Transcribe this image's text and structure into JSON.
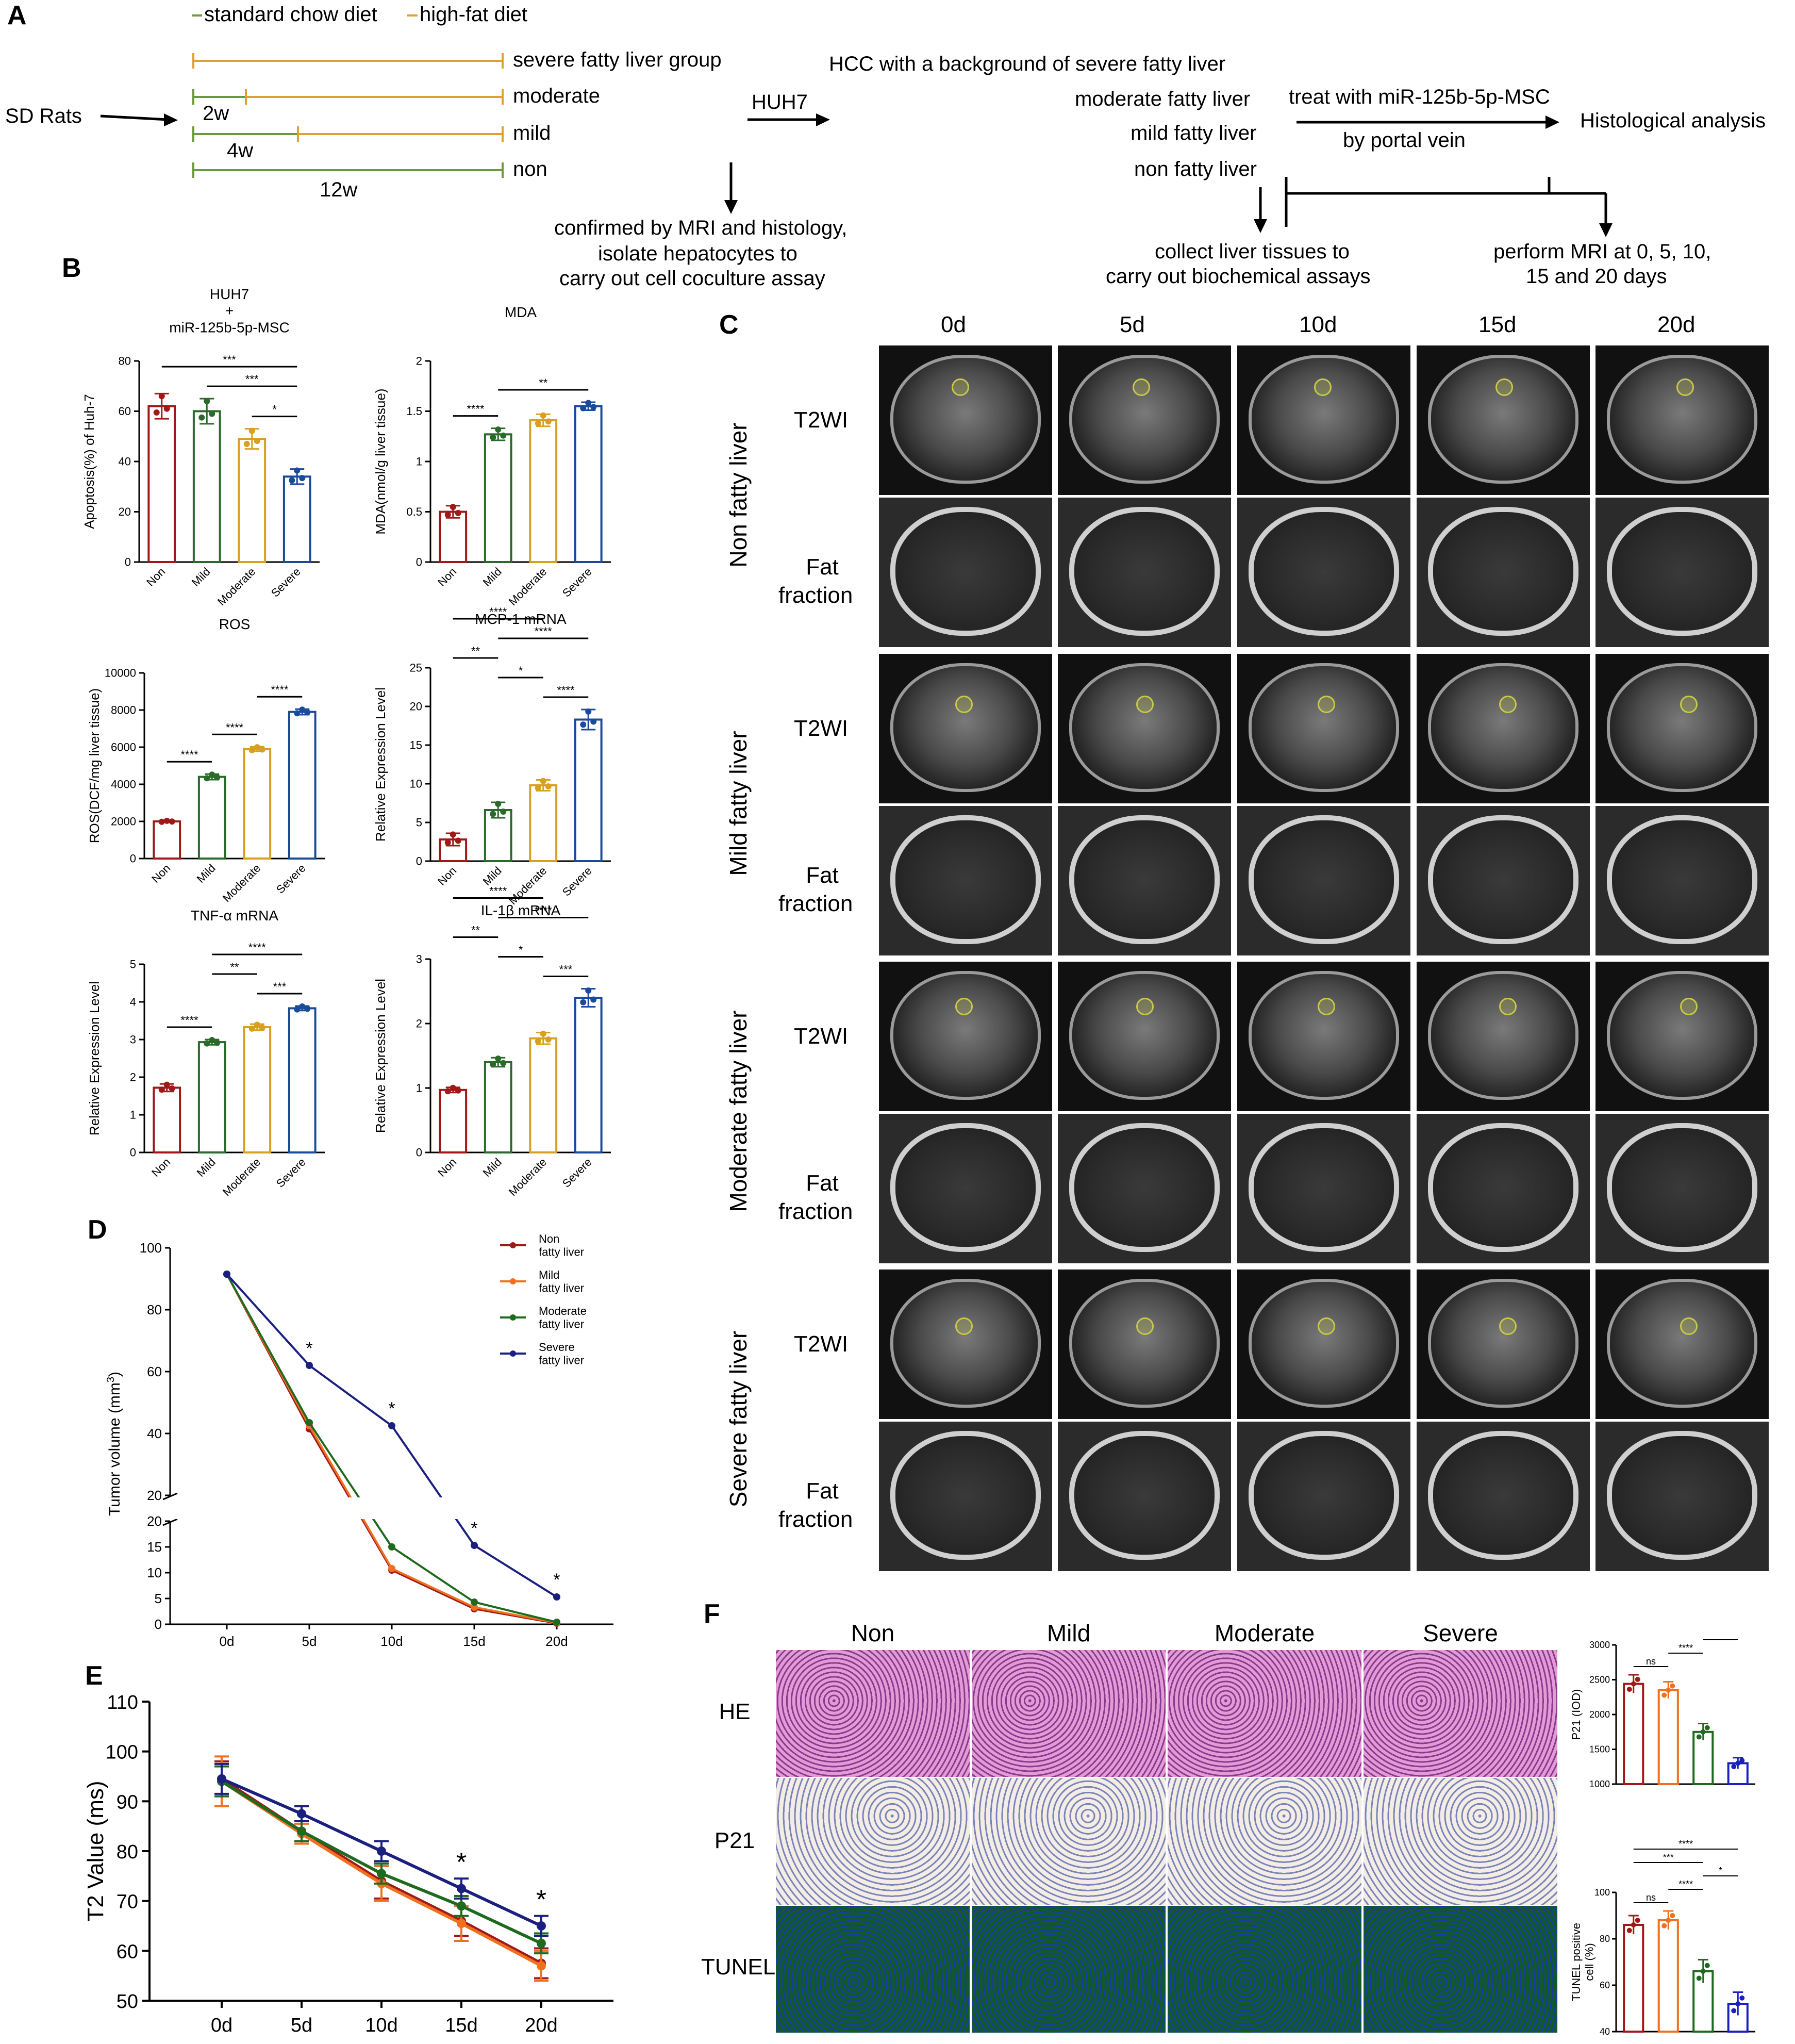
{
  "panel_labels": {
    "A": "A",
    "B": "B",
    "C": "C",
    "D": "D",
    "E": "E",
    "F": "F"
  },
  "panelA": {
    "legend_chow": "standard chow diet",
    "legend_hfd": "high-fat diet",
    "sd_rats": "SD Rats",
    "groups": [
      "severe fatty liver group",
      "moderate",
      "mild",
      "non"
    ],
    "durations": [
      "2w",
      "4w",
      "12w"
    ],
    "huh7": "HUH7",
    "hcc_bg": "HCC with a background of severe fatty liver",
    "confirm": [
      "confirmed by MRI and histology,",
      "isolate hepatocytes to",
      "carry out cell coculture assay"
    ],
    "right_groups": [
      "moderate fatty liver",
      "mild fatty liver",
      "non fatty liver"
    ],
    "treat": "treat with miR-125b-5p-MSC",
    "portal": "by portal vein",
    "histo": "Histological analysis",
    "collect": [
      "collect liver tissues to",
      "carry out biochemical assays"
    ],
    "mri": [
      "perform MRI at 0, 5, 10,",
      "15 and 20 days"
    ],
    "colors": {
      "chow": "#6a9a3a",
      "hfd": "#e0a030"
    }
  },
  "chart_data": [
    {
      "id": "B1",
      "type": "bar",
      "title": "HUH7\n+\nmiR-125b-5p-MSC",
      "ylabel": "Apoptosis(%) of Huh-7",
      "categories": [
        "Non",
        "Mild",
        "Moderate",
        "Severe"
      ],
      "values": [
        62,
        60,
        49,
        34
      ],
      "errors": [
        5,
        5,
        4,
        3
      ],
      "ylim": [
        0,
        80
      ],
      "ticks": [
        0,
        20,
        40,
        60,
        80
      ],
      "sig": [
        {
          "a": 1,
          "b": 3,
          "label": "***"
        },
        {
          "a": 0,
          "b": 3,
          "label": "***"
        },
        {
          "a": 2,
          "b": 3,
          "label": "*"
        }
      ]
    },
    {
      "id": "B2",
      "type": "bar",
      "title": "MDA",
      "ylabel": "MDA(nmol/g liver tissue)",
      "categories": [
        "Non",
        "Mild",
        "Moderate",
        "Severe"
      ],
      "values": [
        0.5,
        1.27,
        1.41,
        1.55
      ],
      "errors": [
        0.06,
        0.06,
        0.06,
        0.04
      ],
      "ylim": [
        0,
        2.0
      ],
      "ticks": [
        0.0,
        0.5,
        1.0,
        1.5,
        2.0
      ],
      "sig": [
        {
          "a": 0,
          "b": 1,
          "label": "****"
        },
        {
          "a": 1,
          "b": 3,
          "label": "**"
        }
      ]
    },
    {
      "id": "B3",
      "type": "bar",
      "title": "ROS",
      "ylabel": "ROS(DCF/mg liver tissue)",
      "categories": [
        "Non",
        "Mild",
        "Moderate",
        "Severe"
      ],
      "values": [
        2000,
        4400,
        5900,
        7900
      ],
      "errors": [
        40,
        150,
        120,
        150
      ],
      "ylim": [
        0,
        10000
      ],
      "ticks": [
        0,
        2000,
        4000,
        6000,
        8000,
        10000
      ],
      "sig": [
        {
          "a": 0,
          "b": 1,
          "label": "****"
        },
        {
          "a": 1,
          "b": 2,
          "label": "****"
        },
        {
          "a": 2,
          "b": 3,
          "label": "****"
        }
      ]
    },
    {
      "id": "B4",
      "type": "bar",
      "title": "MCP-1 mRNA",
      "ylabel": "Relative Expression Level",
      "categories": [
        "Non",
        "Mild",
        "Moderate",
        "Severe"
      ],
      "values": [
        2.8,
        6.6,
        9.8,
        18.3
      ],
      "errors": [
        0.8,
        1.0,
        0.7,
        1.3
      ],
      "ylim": [
        0,
        25
      ],
      "ticks": [
        0,
        5,
        10,
        15,
        20,
        25
      ],
      "sig": [
        {
          "a": 1,
          "b": 3,
          "label": "****"
        },
        {
          "a": 2,
          "b": 3,
          "label": "****"
        },
        {
          "a": 0,
          "b": 2,
          "label": "****"
        },
        {
          "a": 1,
          "b": 2,
          "label": "*"
        },
        {
          "a": 0,
          "b": 1,
          "label": "**"
        }
      ]
    },
    {
      "id": "B5",
      "type": "bar",
      "title": "TNF-α mRNA",
      "ylabel": "Relative Expression Level",
      "categories": [
        "Non",
        "Mild",
        "Moderate",
        "Severe"
      ],
      "values": [
        1.72,
        2.93,
        3.33,
        3.83
      ],
      "errors": [
        0.1,
        0.07,
        0.08,
        0.06
      ],
      "ylim": [
        0,
        5
      ],
      "ticks": [
        0,
        1,
        2,
        3,
        4,
        5
      ],
      "sig": [
        {
          "a": 1,
          "b": 3,
          "label": "****"
        },
        {
          "a": 2,
          "b": 3,
          "label": "***"
        },
        {
          "a": 0,
          "b": 1,
          "label": "****"
        },
        {
          "a": 1,
          "b": 2,
          "label": "**"
        }
      ]
    },
    {
      "id": "B6",
      "type": "bar",
      "title": "IL-1β mRNA",
      "ylabel": "Relative Expression Level",
      "categories": [
        "Non",
        "Mild",
        "Moderate",
        "Severe"
      ],
      "values": [
        0.97,
        1.4,
        1.77,
        2.4
      ],
      "errors": [
        0.04,
        0.07,
        0.09,
        0.14
      ],
      "ylim": [
        0,
        3
      ],
      "ticks": [
        0,
        1,
        2,
        3
      ],
      "sig": [
        {
          "a": 1,
          "b": 3,
          "label": "****"
        },
        {
          "a": 2,
          "b": 3,
          "label": "***"
        },
        {
          "a": 0,
          "b": 2,
          "label": "****"
        },
        {
          "a": 1,
          "b": 2,
          "label": "*"
        },
        {
          "a": 0,
          "b": 1,
          "label": "**"
        }
      ]
    },
    {
      "id": "D",
      "type": "line",
      "ylabel": "Tumor volume (mm",
      "ylabel_sup": "3",
      "ylabel_tail": ")",
      "x": [
        "0d",
        "5d",
        "10d",
        "15d",
        "20d"
      ],
      "series": [
        {
          "name": "Non\nfatty liver",
          "color": "#a01818",
          "values": [
            91.5,
            41.5,
            10.5,
            3.0,
            0.2
          ]
        },
        {
          "name": "Mild\nfatty liver",
          "color": "#f07020",
          "values": [
            91.5,
            42.5,
            10.8,
            3.3,
            0.3
          ]
        },
        {
          "name": "Moderate\nfatty liver",
          "color": "#1e6a1e",
          "values": [
            91.5,
            43.5,
            15.0,
            4.3,
            0.4
          ]
        },
        {
          "name": "Severe\nfatty liver",
          "color": "#1a1f80",
          "values": [
            91.5,
            62.0,
            42.5,
            15.3,
            5.3
          ]
        }
      ],
      "sig_x": [
        1,
        2,
        3,
        4
      ],
      "sig_label": "*",
      "upper_ticks": [
        20,
        40,
        60,
        80,
        100
      ],
      "lower_ticks": [
        0,
        5,
        10,
        15,
        20
      ]
    },
    {
      "id": "E",
      "type": "line",
      "ylabel": "T2 Value (ms)",
      "x": [
        "0d",
        "5d",
        "10d",
        "15d",
        "20d"
      ],
      "ylim": [
        50,
        110
      ],
      "ticks": [
        50,
        60,
        70,
        80,
        90,
        100,
        110
      ],
      "series": [
        {
          "name": "Non",
          "color": "#a01818",
          "values": [
            94.5,
            84,
            74,
            66,
            57.5
          ],
          "err": [
            3.5,
            2,
            3.5,
            3,
            3
          ]
        },
        {
          "name": "Mild",
          "color": "#f07020",
          "values": [
            94,
            83.5,
            73.5,
            65.5,
            57
          ],
          "err": [
            5,
            2,
            3.5,
            3.5,
            3
          ]
        },
        {
          "name": "Moderate",
          "color": "#1e6a1e",
          "values": [
            94,
            84,
            75.5,
            69,
            61.5
          ],
          "err": [
            3,
            2,
            2,
            2,
            2
          ]
        },
        {
          "name": "Severe",
          "color": "#1a1f80",
          "values": [
            94.5,
            87.5,
            80,
            72.5,
            65
          ],
          "err": [
            3,
            1.5,
            2,
            2,
            2
          ]
        }
      ],
      "sig_x": [
        3,
        4
      ],
      "sig_label": "*"
    },
    {
      "id": "F1",
      "type": "bar",
      "ylabel": "P21 (IOD)",
      "categories": [
        "Non",
        "Mild",
        "Moderate",
        "Severe"
      ],
      "values": [
        2440,
        2350,
        1750,
        1300
      ],
      "errors": [
        130,
        120,
        120,
        80
      ],
      "ylim": [
        1000,
        3000
      ],
      "ticks": [
        1000,
        1500,
        2000,
        2500,
        3000
      ],
      "colors": [
        "#a01818",
        "#f07020",
        "#1e6a1e",
        "#1a1fbf"
      ],
      "sig": [
        {
          "a": 0,
          "b": 2,
          "label": "****"
        },
        {
          "a": 0,
          "b": 1,
          "label": "ns"
        },
        {
          "a": 1,
          "b": 2,
          "label": "****"
        },
        {
          "a": 2,
          "b": 3,
          "label": "***"
        }
      ]
    },
    {
      "id": "F2",
      "type": "bar",
      "ylabel": "TUNEL positive\ncell (%)",
      "categories": [
        "Non",
        "Mild",
        "Moderate",
        "Severe"
      ],
      "values": [
        86,
        88,
        66,
        52
      ],
      "errors": [
        4,
        4,
        5,
        5
      ],
      "ylim": [
        40,
        100
      ],
      "ticks": [
        40,
        60,
        80,
        100
      ],
      "colors": [
        "#a01818",
        "#f07020",
        "#1e6a1e",
        "#1a1fbf"
      ],
      "sig": [
        {
          "a": 0,
          "b": 3,
          "label": "****"
        },
        {
          "a": 0,
          "b": 2,
          "label": "***"
        },
        {
          "a": 0,
          "b": 1,
          "label": "ns"
        },
        {
          "a": 1,
          "b": 2,
          "label": "****"
        },
        {
          "a": 2,
          "b": 3,
          "label": "*"
        }
      ]
    }
  ],
  "panelC": {
    "days": [
      "0d",
      "5d",
      "10d",
      "15d",
      "20d"
    ],
    "groups": [
      "Non fatty liver",
      "Mild fatty liver",
      "Moderate fatty liver",
      "Severe fatty liver"
    ],
    "row_t2": "T2WI",
    "row_ff1": "Fat",
    "row_ff2": "fraction"
  },
  "panelF": {
    "groups": [
      "Non",
      "Mild",
      "Moderate",
      "Severe"
    ],
    "rows": [
      "HE",
      "P21",
      "TUNEL"
    ]
  },
  "bar_colors": [
    "#a01818",
    "#2a6a2a",
    "#d8a020",
    "#1a4a9a"
  ]
}
